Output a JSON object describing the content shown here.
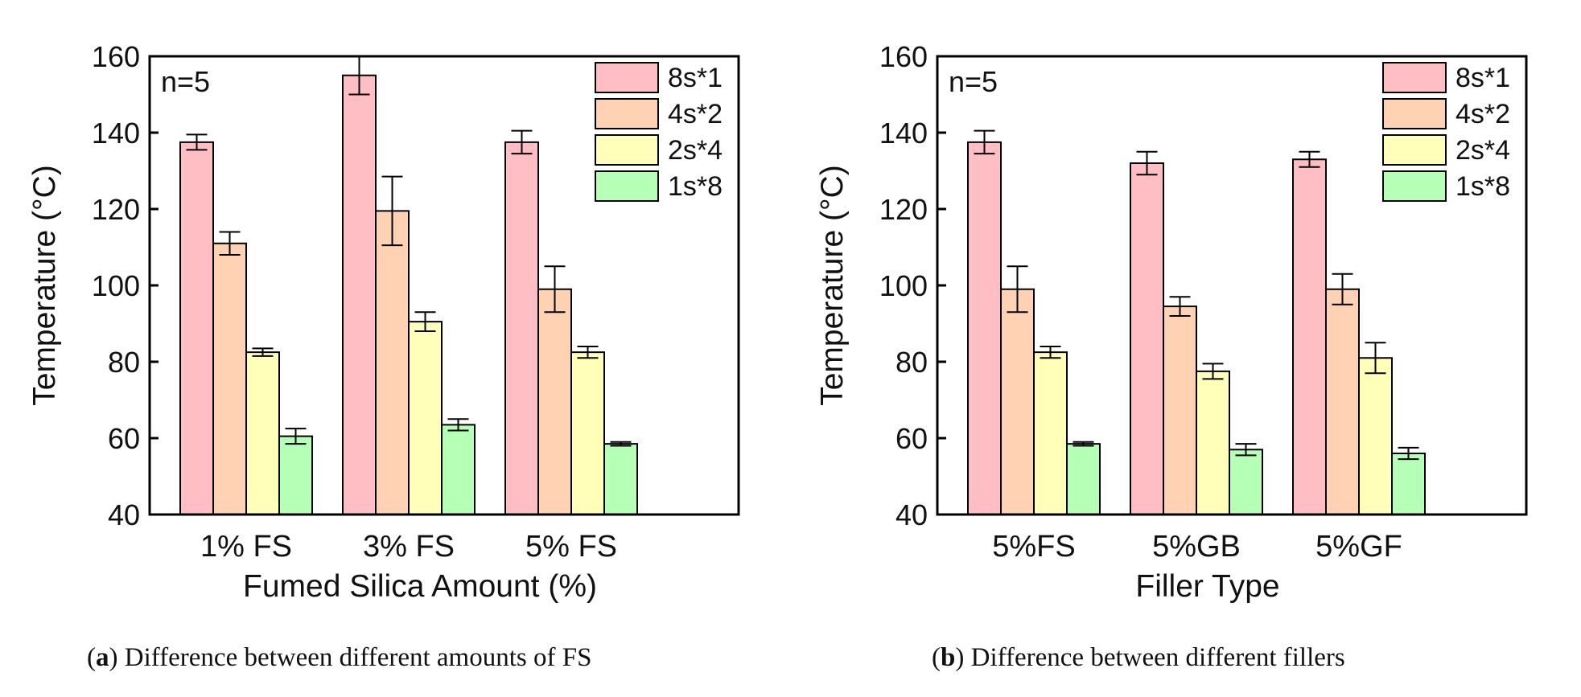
{
  "colors": {
    "8s*1": "#ffbdc4",
    "4s*2": "#ffd2b4",
    "2s*4": "#ffffba",
    "1s*8": "#b6ffb6",
    "stroke": "#000000"
  },
  "chart_data": [
    {
      "type": "bar",
      "title": "",
      "annotation": "n=5",
      "xlabel": "Fumed Silica Amount (%)",
      "ylabel": "Temperature (°C)",
      "ylim": [
        40,
        160
      ],
      "yticks": [
        40,
        60,
        80,
        100,
        120,
        140,
        160
      ],
      "categories": [
        "1% FS",
        "3% FS",
        "5% FS"
      ],
      "legend_position": "top-right",
      "series": [
        {
          "name": "8s*1",
          "values": [
            137.5,
            155,
            137.5
          ],
          "errors": [
            2,
            5,
            3
          ]
        },
        {
          "name": "4s*2",
          "values": [
            111,
            119.5,
            99
          ],
          "errors": [
            3,
            9,
            6
          ]
        },
        {
          "name": "2s*4",
          "values": [
            82.5,
            90.5,
            82.5
          ],
          "errors": [
            1,
            2.5,
            1.5
          ]
        },
        {
          "name": "1s*8",
          "values": [
            60.5,
            63.5,
            58.5
          ],
          "errors": [
            2,
            1.5,
            0.5
          ]
        }
      ],
      "caption": {
        "letter": "a",
        "text": "Difference between different amounts of FS"
      }
    },
    {
      "type": "bar",
      "title": "",
      "annotation": "n=5",
      "xlabel": "Filler Type",
      "ylabel": "Temperature (°C)",
      "ylim": [
        40,
        160
      ],
      "yticks": [
        40,
        60,
        80,
        100,
        120,
        140,
        160
      ],
      "categories": [
        "5%FS",
        "5%GB",
        "5%GF"
      ],
      "legend_position": "top-right",
      "series": [
        {
          "name": "8s*1",
          "values": [
            137.5,
            132,
            133
          ],
          "errors": [
            3,
            3,
            2
          ]
        },
        {
          "name": "4s*2",
          "values": [
            99,
            94.5,
            99
          ],
          "errors": [
            6,
            2.5,
            4
          ]
        },
        {
          "name": "2s*4",
          "values": [
            82.5,
            77.5,
            81
          ],
          "errors": [
            1.5,
            2,
            4
          ]
        },
        {
          "name": "1s*8",
          "values": [
            58.5,
            57,
            56
          ],
          "errors": [
            0.5,
            1.5,
            1.5
          ]
        }
      ],
      "caption": {
        "letter": "b",
        "text": "Difference between different fillers"
      }
    }
  ]
}
